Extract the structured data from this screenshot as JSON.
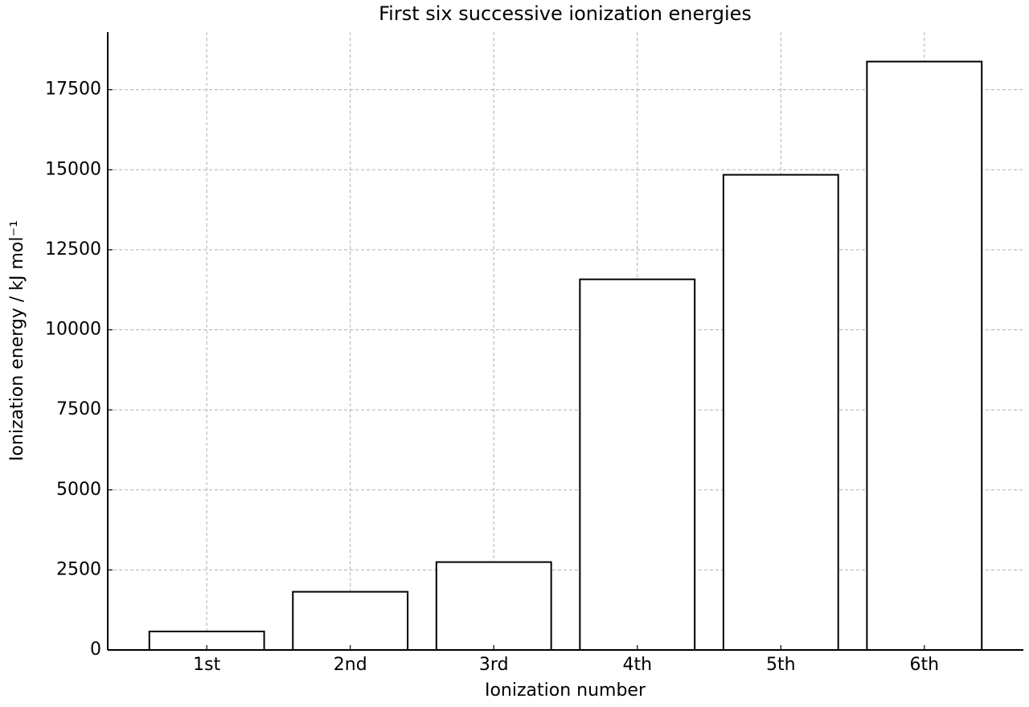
{
  "chart_data": {
    "type": "bar",
    "title": "First six successive ionization energies",
    "x_label": "Ionization number",
    "y_label": "Ionization energy / kJ mol⁻¹",
    "categories": [
      "1st",
      "2nd",
      "3rd",
      "4th",
      "5th",
      "6th"
    ],
    "values": [
      578,
      1817,
      2745,
      11577,
      14842,
      18379
    ],
    "color": "#ffffff",
    "edge_color": "#000000",
    "ylim": [
      0,
      19298
    ],
    "yticks": [
      0,
      2500,
      5000,
      7500,
      10000,
      12500,
      15000,
      17500
    ],
    "grid": true
  }
}
